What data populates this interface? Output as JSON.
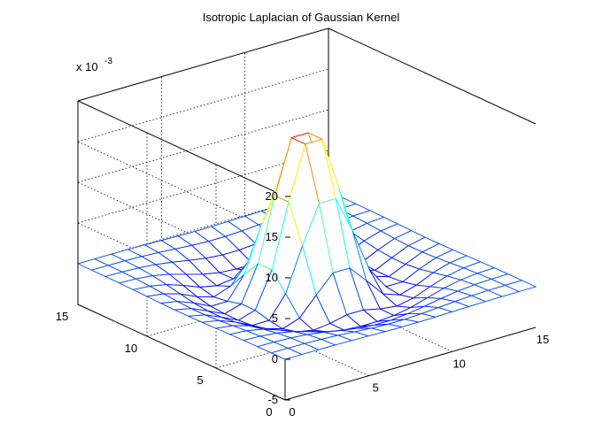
{
  "chart_data": {
    "type": "surface",
    "title": "Isotropic Laplacian of Gaussian Kernel",
    "xlabel": "",
    "ylabel": "",
    "zlabel": "",
    "z_exponent_label": "x 10",
    "z_exponent_power": "-3",
    "x_ticks": [
      "0",
      "5",
      "10",
      "15"
    ],
    "y_ticks": [
      "0",
      "5",
      "10",
      "15"
    ],
    "z_ticks": [
      "-5",
      "0",
      "5",
      "10",
      "15",
      "20"
    ],
    "xlim": [
      0,
      15
    ],
    "ylim": [
      0,
      15
    ],
    "zlim": [
      -5,
      20
    ],
    "grid": true,
    "grid_size": 15,
    "center": [
      7.5,
      7.5
    ],
    "peak_value": 18.8,
    "trough_value": -3.2,
    "sigma": 1.5,
    "colormap": "jet",
    "mesh_style": "wireframe"
  }
}
